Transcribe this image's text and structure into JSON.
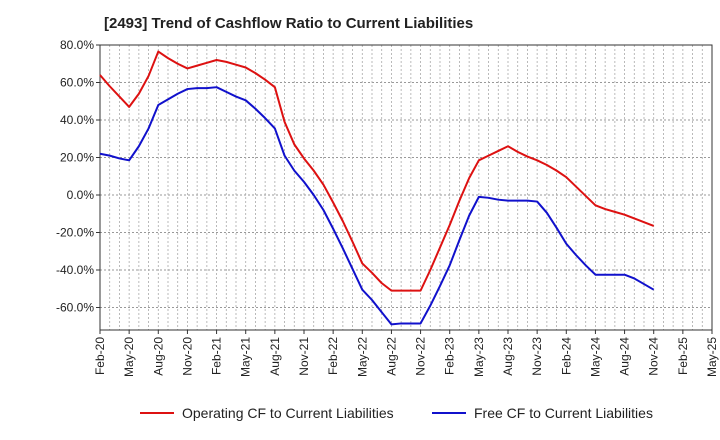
{
  "title": "[2493]  Trend of Cashflow Ratio to Current Liabilities",
  "chart_data": {
    "type": "line",
    "title": "[2493]  Trend of Cashflow Ratio to Current Liabilities",
    "xlabel": "",
    "ylabel": "",
    "x_ticks": [
      "Feb-20",
      "May-20",
      "Aug-20",
      "Nov-20",
      "Feb-21",
      "May-21",
      "Aug-21",
      "Nov-21",
      "Feb-22",
      "May-22",
      "Aug-22",
      "Nov-22",
      "Feb-23",
      "May-23",
      "Aug-23",
      "Nov-23",
      "Feb-24",
      "May-24",
      "Aug-24",
      "Nov-24",
      "Feb-25",
      "May-25"
    ],
    "y_ticks": [
      "80.0%",
      "60.0%",
      "40.0%",
      "20.0%",
      "0.0%",
      "-20.0%",
      "-40.0%",
      "-60.0%"
    ],
    "y_tick_values": [
      80,
      60,
      40,
      20,
      0,
      -20,
      -40,
      -60
    ],
    "ylim": [
      -72,
      80
    ],
    "grid": true,
    "legend_position": "bottom",
    "series": [
      {
        "name": "Operating CF to Current Liabilities",
        "color": "#dd1111",
        "x": [
          "Feb-20",
          "Mar-20",
          "Apr-20",
          "May-20",
          "Jun-20",
          "Jul-20",
          "Aug-20",
          "Sep-20",
          "Oct-20",
          "Nov-20",
          "Dec-20",
          "Jan-21",
          "Feb-21",
          "Mar-21",
          "Apr-21",
          "May-21",
          "Jun-21",
          "Jul-21",
          "Aug-21",
          "Sep-21",
          "Oct-21",
          "Nov-21",
          "Dec-21",
          "Jan-22",
          "Feb-22",
          "Mar-22",
          "Apr-22",
          "May-22",
          "Jun-22",
          "Jul-22",
          "Aug-22",
          "Sep-22",
          "Oct-22",
          "Nov-22",
          "Dec-22",
          "Jan-23",
          "Feb-23",
          "Mar-23",
          "Apr-23",
          "May-23",
          "Jun-23",
          "Jul-23",
          "Aug-23",
          "Sep-23",
          "Oct-23",
          "Nov-23",
          "Dec-23",
          "Jan-24",
          "Feb-24",
          "Mar-24",
          "Apr-24",
          "May-24",
          "Jun-24",
          "Jul-24",
          "Aug-24",
          "Sep-24",
          "Oct-24",
          "Nov-24"
        ],
        "values": [
          64,
          58,
          52.5,
          47,
          54,
          63.5,
          76.5,
          73,
          70,
          67.5,
          69,
          70.5,
          72,
          71,
          69.5,
          68,
          65,
          61.5,
          57.5,
          39,
          27,
          19.5,
          13,
          5.5,
          -4,
          -14,
          -25,
          -36.5,
          -41.5,
          -47,
          -51,
          -51,
          -51,
          -51,
          -40,
          -28,
          -16,
          -3,
          9,
          18.5,
          21,
          23.5,
          26,
          23,
          20.5,
          18.5,
          16,
          13,
          9.5,
          4.5,
          -0.5,
          -5.5,
          -7.5,
          -9,
          -10.5,
          -12.5,
          -14.5,
          -16.5
        ]
      },
      {
        "name": "Free CF to Current Liabilities",
        "color": "#1111cc",
        "x": [
          "Feb-20",
          "Mar-20",
          "Apr-20",
          "May-20",
          "Jun-20",
          "Jul-20",
          "Aug-20",
          "Sep-20",
          "Oct-20",
          "Nov-20",
          "Dec-20",
          "Jan-21",
          "Feb-21",
          "Mar-21",
          "Apr-21",
          "May-21",
          "Jun-21",
          "Jul-21",
          "Aug-21",
          "Sep-21",
          "Oct-21",
          "Nov-21",
          "Dec-21",
          "Jan-22",
          "Feb-22",
          "Mar-22",
          "Apr-22",
          "May-22",
          "Jun-22",
          "Jul-22",
          "Aug-22",
          "Sep-22",
          "Oct-22",
          "Nov-22",
          "Dec-22",
          "Jan-23",
          "Feb-23",
          "Mar-23",
          "Apr-23",
          "May-23",
          "Jun-23",
          "Jul-23",
          "Aug-23",
          "Sep-23",
          "Oct-23",
          "Nov-23",
          "Dec-23",
          "Jan-24",
          "Feb-24",
          "Mar-24",
          "Apr-24",
          "May-24",
          "Jun-24",
          "Jul-24",
          "Aug-24",
          "Sep-24",
          "Oct-24",
          "Nov-24"
        ],
        "values": [
          22,
          21,
          19.5,
          18.5,
          26,
          35.5,
          48,
          51,
          54,
          56.5,
          57,
          57,
          57.5,
          55,
          52.5,
          50.5,
          46,
          41,
          35.5,
          21,
          13,
          7,
          0,
          -8,
          -18,
          -28.5,
          -39.5,
          -50.5,
          -56,
          -62.5,
          -69,
          -68.5,
          -68.5,
          -68.5,
          -59,
          -48.5,
          -37.5,
          -24,
          -11,
          -1,
          -1.5,
          -2.5,
          -3,
          -3,
          -3,
          -3.5,
          -9.5,
          -17.5,
          -26,
          -32,
          -37.5,
          -42.5,
          -42.5,
          -42.5,
          -42.5,
          -44.5,
          -47.5,
          -50.5
        ]
      }
    ]
  }
}
